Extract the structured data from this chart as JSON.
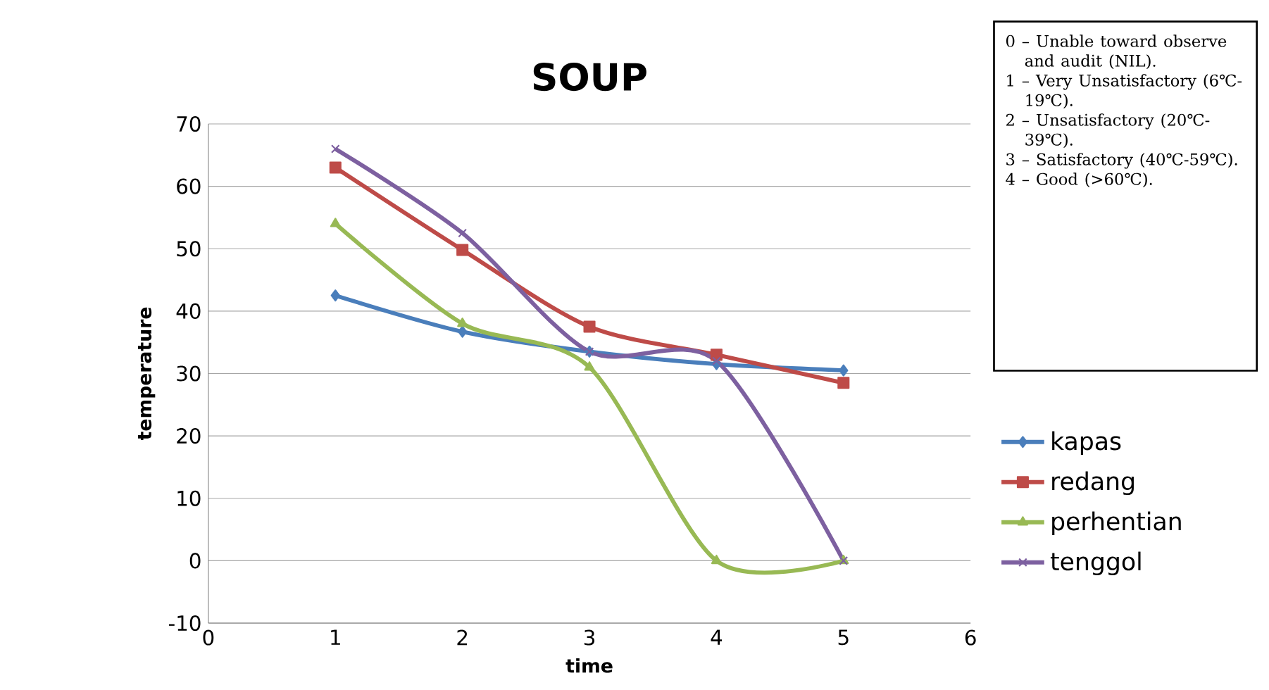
{
  "chart_data": {
    "type": "line",
    "title": "SOUP",
    "xlabel": "time",
    "ylabel": "temperature",
    "x": [
      1,
      2,
      3,
      4,
      5
    ],
    "series": [
      {
        "name": "kapas",
        "color": "#4a7ebb",
        "marker": "diamond",
        "values": [
          42.5,
          36.7,
          33.5,
          31.5,
          30.5
        ]
      },
      {
        "name": "redang",
        "color": "#be4b48",
        "marker": "square",
        "values": [
          63,
          49.8,
          37.5,
          33,
          28.5
        ]
      },
      {
        "name": "perhentian",
        "color": "#98b954",
        "marker": "triangle",
        "values": [
          54,
          38,
          31,
          0,
          0
        ]
      },
      {
        "name": "tenggol",
        "color": "#7d60a0",
        "marker": "cross",
        "values": [
          66,
          52.5,
          33.5,
          32,
          0
        ]
      }
    ],
    "xlim": [
      0,
      6
    ],
    "xticks": [
      0,
      1,
      2,
      3,
      4,
      5,
      6
    ],
    "ylim": [
      -10,
      70
    ],
    "yticks": [
      -10,
      0,
      10,
      20,
      30,
      40,
      50,
      60,
      70
    ],
    "grid": "y",
    "legend": "right",
    "annotations": [
      "0 – Unable toward observe and audit (NIL).",
      "1 – Very Unsatisfactory (6℃-19℃).",
      "2 – Unsatisfactory (20℃-39℃).",
      "3 – Satisfactory (40℃-59℃).",
      "4 – Good (>60℃)."
    ]
  }
}
